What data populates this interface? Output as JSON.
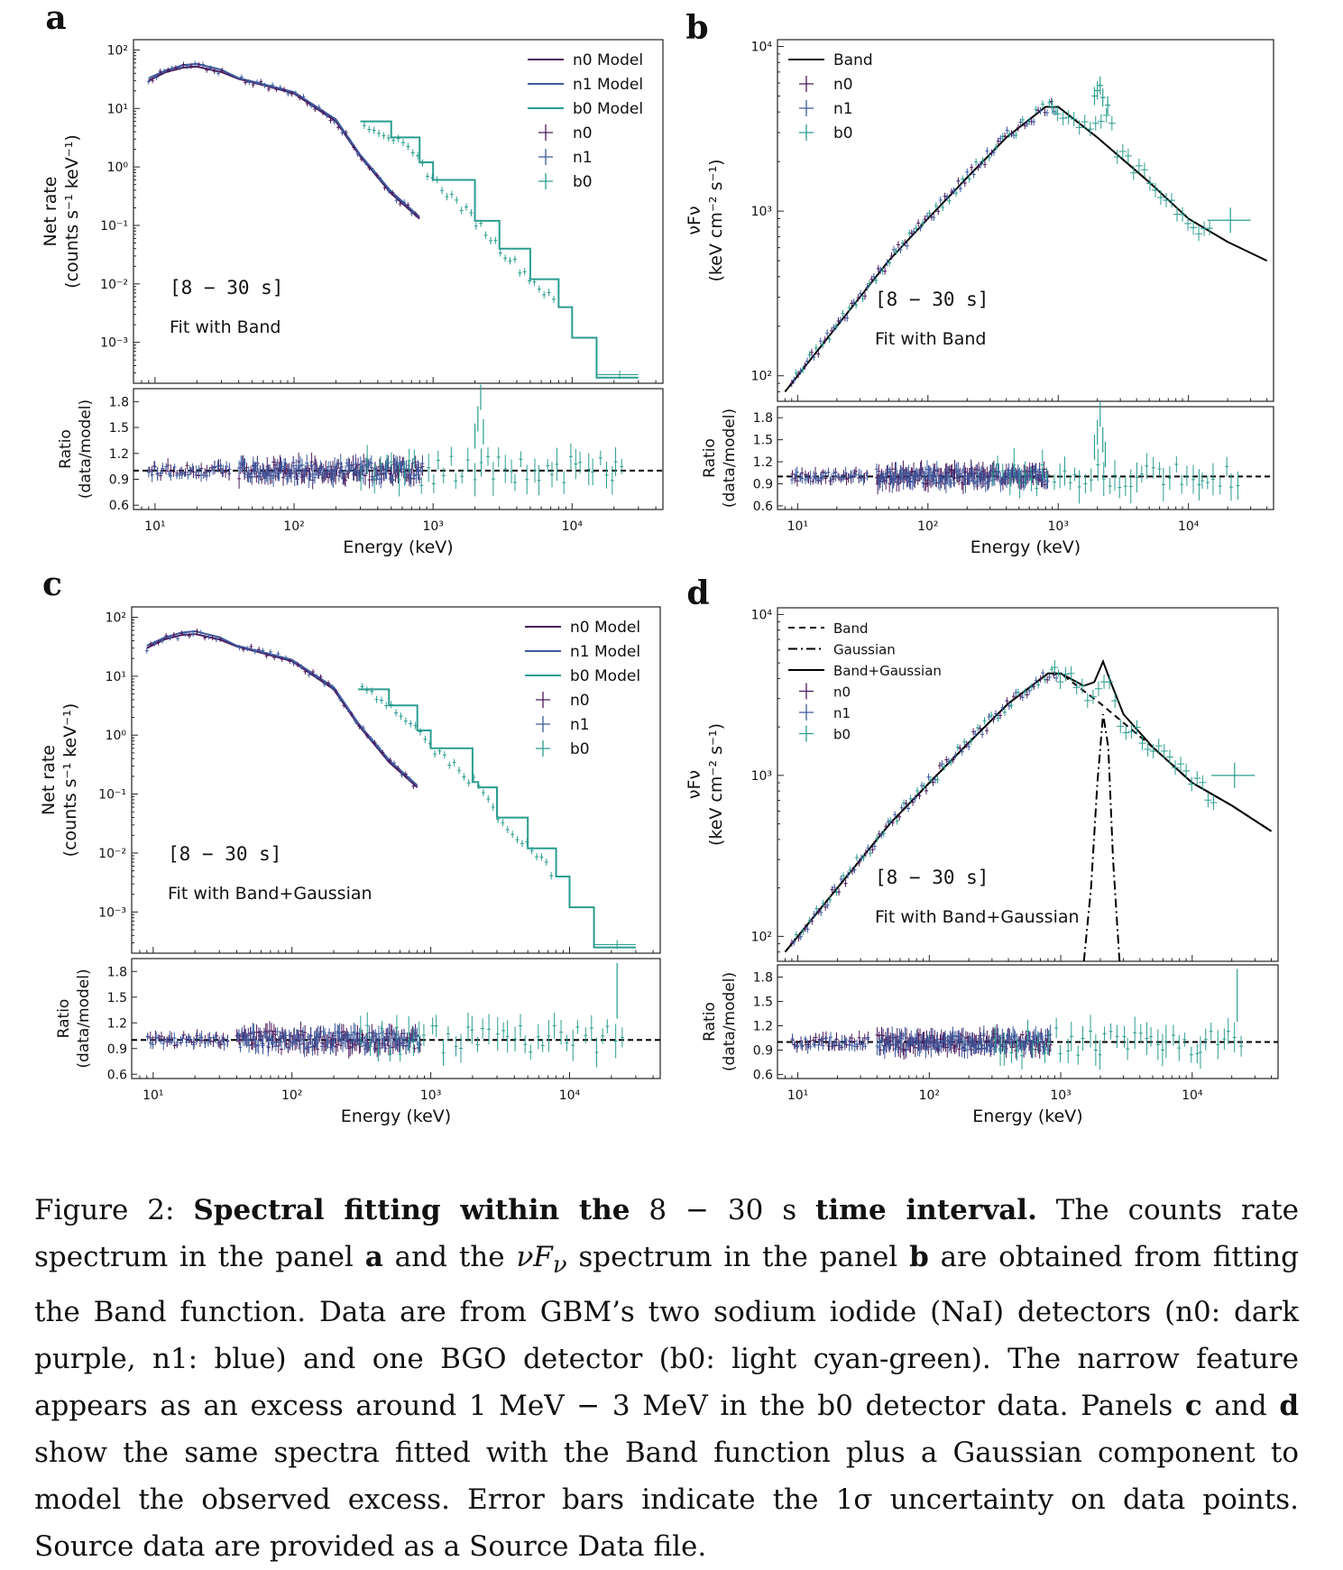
{
  "figure": {
    "caption": {
      "fig_label": "Figure 2:",
      "bold_a": "Spectral fitting within the",
      "math_interval": "8 − 30 s",
      "bold_b": "time interval.",
      "s1": "The counts rate spectrum in the panel",
      "a": "a",
      "s2": "and the",
      "s3": "spectrum in the panel",
      "b": "b",
      "s4": "are obtained from fitting the Band function. Data are from GBM’s two sodium iodide (NaI) detectors (n0: dark purple, n1: blue) and one BGO detector (b0: light cyan-green). The narrow feature appears as an excess around",
      "math_range": "1 MeV − 3 MeV",
      "s5": "in the b0 detector data. Panels",
      "c": "c",
      "s6": "and",
      "d": "d",
      "s7": "show the same spectra fitted with the Band function plus a Gaussian component to model the observed excess. Error bars indicate the",
      "math_sigma": "1σ",
      "s8": "uncertainty on data points. Source data are provided as a Source Data file."
    }
  },
  "colors": {
    "n0": "#4a1a5c",
    "n1": "#3d5a9e",
    "b0": "#2a9d8f",
    "model_black": "#000000"
  },
  "chart_data": [
    {
      "panel": "a",
      "type": "line",
      "xscale": "log",
      "yscale": "log",
      "xlim": [
        7,
        45000
      ],
      "ylim": [
        0.0002,
        150
      ],
      "xlabel": "",
      "ylabel": "Net rate\n(counts s⁻¹ keV⁻¹)",
      "yticks": [
        "10²",
        "10¹",
        "10⁰",
        "10⁻¹",
        "10⁻²",
        "10⁻³"
      ],
      "annotations": [
        "[8 − 30 s]",
        "Fit with Band"
      ],
      "legend": [
        "n0 Model",
        "n1 Model",
        "b0 Model",
        "n0",
        "n1",
        "b0"
      ],
      "legend_placement": "top-right",
      "series": [
        {
          "name": "n0 Model",
          "x": [
            9,
            12,
            16,
            20,
            30,
            40,
            60,
            100,
            200,
            300,
            500,
            800
          ],
          "y": [
            30,
            42,
            50,
            52,
            42,
            32,
            25,
            18,
            6,
            1.5,
            0.35,
            0.13
          ]
        },
        {
          "name": "n1 Model",
          "x": [
            9,
            12,
            16,
            20,
            30,
            40,
            60,
            100,
            200,
            300,
            500,
            800
          ],
          "y": [
            33,
            45,
            55,
            58,
            46,
            33,
            26,
            19,
            6.5,
            1.6,
            0.38,
            0.14
          ]
        },
        {
          "name": "b0 Model",
          "x": [
            300,
            500,
            800,
            1000,
            2000,
            3000,
            5000,
            8000,
            10000,
            15000,
            30000
          ],
          "y": [
            6,
            3.2,
            1.2,
            0.6,
            0.12,
            0.04,
            0.012,
            0.004,
            0.0012,
            0.00025,
            0.00025
          ]
        }
      ],
      "ratio": {
        "ylabel": "Ratio\n(data/model)",
        "yticks": [
          0.6,
          0.9,
          1.2,
          1.5,
          1.8
        ],
        "ylim": [
          0.55,
          1.95
        ],
        "reference": 1.0,
        "excess": {
          "x": [
            2000,
            2100,
            2200,
            2300
          ],
          "y": [
            1.4,
            1.6,
            1.85,
            1.45
          ]
        }
      },
      "xlabel_bottom": "Energy (keV)",
      "xticks": [
        "10¹",
        "10²",
        "10³",
        "10⁴"
      ]
    },
    {
      "panel": "b",
      "type": "line",
      "xscale": "log",
      "yscale": "log",
      "xlim": [
        7,
        45000
      ],
      "ylim": [
        70,
        11000
      ],
      "ylabel": "νFν\n(keV cm⁻² s⁻¹)",
      "yticks": [
        "10⁴",
        "10³",
        "10²"
      ],
      "annotations": [
        "[8 − 30 s]",
        "Fit with Band"
      ],
      "legend": [
        "Band",
        "n0",
        "n1",
        "b0"
      ],
      "legend_placement": "top-left",
      "series": [
        {
          "name": "Band",
          "x": [
            8,
            20,
            50,
            100,
            200,
            400,
            800,
            1000,
            2000,
            5000,
            10000,
            20000,
            40000
          ],
          "y": [
            80,
            200,
            500,
            900,
            1600,
            2800,
            4300,
            4300,
            2800,
            1500,
            900,
            650,
            500
          ]
        }
      ],
      "excess": {
        "x": [
          1900,
          2000,
          2100,
          2200,
          2400
        ],
        "y": [
          5000,
          5400,
          5800,
          4900,
          4400
        ]
      },
      "ratio": {
        "ylabel": "Ratio\n(data/model)",
        "yticks": [
          0.6,
          0.9,
          1.2,
          1.5,
          1.8
        ],
        "ylim": [
          0.55,
          1.95
        ],
        "reference": 1.0
      },
      "xlabel_bottom": "Energy (keV)",
      "xticks": [
        "10¹",
        "10²",
        "10³",
        "10⁴"
      ]
    },
    {
      "panel": "c",
      "type": "line",
      "xscale": "log",
      "yscale": "log",
      "xlim": [
        7,
        45000
      ],
      "ylim": [
        0.0002,
        150
      ],
      "ylabel": "Net rate\n(counts s⁻¹ keV⁻¹)",
      "yticks": [
        "10²",
        "10¹",
        "10⁰",
        "10⁻¹",
        "10⁻²",
        "10⁻³"
      ],
      "annotations": [
        "[8 − 30 s]",
        "Fit with Band+Gaussian"
      ],
      "legend": [
        "n0 Model",
        "n1 Model",
        "b0 Model",
        "n0",
        "n1",
        "b0"
      ],
      "legend_placement": "top-right",
      "series": [
        {
          "name": "n0 Model",
          "x": [
            9,
            12,
            16,
            20,
            30,
            40,
            60,
            100,
            200,
            300,
            500,
            800
          ],
          "y": [
            30,
            42,
            50,
            52,
            42,
            32,
            25,
            18,
            6,
            1.5,
            0.35,
            0.13
          ]
        },
        {
          "name": "n1 Model",
          "x": [
            9,
            12,
            16,
            20,
            30,
            40,
            60,
            100,
            200,
            300,
            500,
            800
          ],
          "y": [
            33,
            45,
            55,
            58,
            46,
            33,
            26,
            19,
            6.5,
            1.6,
            0.38,
            0.14
          ]
        },
        {
          "name": "b0 Model",
          "x": [
            300,
            500,
            800,
            1000,
            2000,
            2200,
            3000,
            5000,
            8000,
            10000,
            15000,
            30000
          ],
          "y": [
            6,
            3.2,
            1.2,
            0.6,
            0.16,
            0.13,
            0.04,
            0.012,
            0.004,
            0.0012,
            0.00025,
            0.00025
          ]
        }
      ],
      "ratio": {
        "ylabel": "Ratio\n(data/model)",
        "yticks": [
          0.6,
          0.9,
          1.2,
          1.5,
          1.8
        ],
        "ylim": [
          0.55,
          1.95
        ],
        "reference": 1.0
      },
      "xlabel_bottom": "Energy (keV)",
      "xticks": [
        "10¹",
        "10²",
        "10³",
        "10⁴"
      ]
    },
    {
      "panel": "d",
      "type": "line",
      "xscale": "log",
      "yscale": "log",
      "xlim": [
        7,
        45000
      ],
      "ylim": [
        70,
        11000
      ],
      "ylabel": "νFν\n(keV cm⁻² s⁻¹)",
      "yticks": [
        "10⁴",
        "10³",
        "10²"
      ],
      "annotations": [
        "[8 − 30 s]",
        "Fit with Band+Gaussian"
      ],
      "legend": [
        "Band",
        "Gaussian",
        "Band+Gaussian",
        "n0",
        "n1",
        "b0"
      ],
      "legend_placement": "top-left",
      "series": [
        {
          "name": "Band",
          "x": [
            8,
            20,
            50,
            100,
            200,
            400,
            800,
            1000,
            2000,
            5000,
            10000,
            20000,
            40000
          ],
          "y": [
            80,
            200,
            500,
            900,
            1600,
            2800,
            4300,
            4300,
            2800,
            1500,
            900,
            650,
            450
          ]
        },
        {
          "name": "Gaussian",
          "x": [
            1500,
            1700,
            1900,
            2100,
            2300,
            2500,
            2800
          ],
          "y": [
            70,
            200,
            900,
            2400,
            1500,
            300,
            70
          ]
        },
        {
          "name": "Band+Gaussian",
          "x": [
            8,
            20,
            50,
            100,
            200,
            400,
            800,
            1000,
            1500,
            1800,
            2100,
            2400,
            3000,
            5000,
            10000,
            20000,
            40000
          ],
          "y": [
            80,
            200,
            500,
            900,
            1600,
            2800,
            4300,
            4300,
            3600,
            3800,
            5100,
            3800,
            2400,
            1500,
            900,
            650,
            450
          ]
        }
      ],
      "ratio": {
        "ylabel": "Ratio\n(data/model)",
        "yticks": [
          0.6,
          0.9,
          1.2,
          1.5,
          1.8
        ],
        "ylim": [
          0.55,
          1.95
        ],
        "reference": 1.0
      },
      "xlabel_bottom": "Energy (keV)",
      "xticks": [
        "10¹",
        "10²",
        "10³",
        "10⁴"
      ]
    }
  ]
}
